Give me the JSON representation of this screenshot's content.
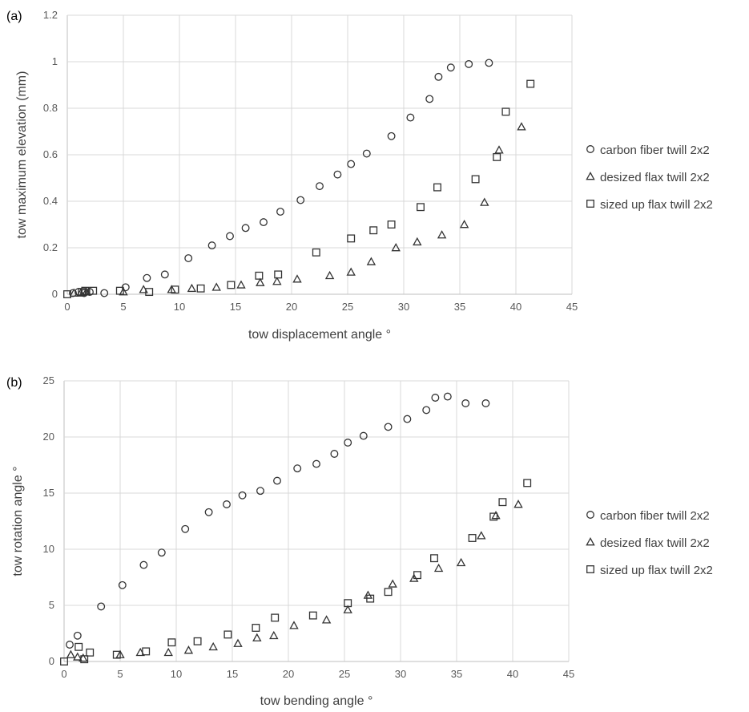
{
  "chart_data": [
    {
      "panel_label": "(a)",
      "type": "scatter",
      "xlabel": "tow displacement angle °",
      "ylabel": "tow maximum elevation (mm)",
      "xlim": [
        0,
        45
      ],
      "ylim": [
        0,
        1.2
      ],
      "x_ticks": [
        "0",
        "5",
        "10",
        "15",
        "20",
        "25",
        "30",
        "35",
        "40",
        "45"
      ],
      "y_ticks": [
        "0",
        "0.2",
        "0.4",
        "0.6",
        "0.8",
        "1",
        "1.2"
      ],
      "grid": true,
      "legend_position": "right",
      "series": [
        {
          "name": "carbon fiber twill 2x2",
          "marker": "circle",
          "points": [
            [
              0.5,
              0.005
            ],
            [
              1.0,
              0.01
            ],
            [
              1.5,
              0.005
            ],
            [
              2.0,
              0.01
            ],
            [
              3.3,
              0.005
            ],
            [
              5.2,
              0.03
            ],
            [
              7.1,
              0.07
            ],
            [
              8.7,
              0.085
            ],
            [
              10.8,
              0.155
            ],
            [
              12.9,
              0.21
            ],
            [
              14.5,
              0.25
            ],
            [
              15.9,
              0.285
            ],
            [
              17.5,
              0.31
            ],
            [
              19.0,
              0.355
            ],
            [
              20.8,
              0.405
            ],
            [
              22.5,
              0.465
            ],
            [
              24.1,
              0.515
            ],
            [
              25.3,
              0.56
            ],
            [
              26.7,
              0.605
            ],
            [
              28.9,
              0.68
            ],
            [
              30.6,
              0.76
            ],
            [
              32.3,
              0.84
            ],
            [
              33.1,
              0.935
            ],
            [
              34.2,
              0.975
            ],
            [
              35.8,
              0.99
            ],
            [
              37.6,
              0.995
            ]
          ]
        },
        {
          "name": "desized flax twill 2x2",
          "marker": "triangle",
          "points": [
            [
              0.6,
              0.005
            ],
            [
              1.2,
              0.005
            ],
            [
              1.7,
              0.01
            ],
            [
              5.0,
              0.01
            ],
            [
              6.8,
              0.02
            ],
            [
              9.3,
              0.02
            ],
            [
              11.1,
              0.025
            ],
            [
              13.3,
              0.03
            ],
            [
              15.5,
              0.04
            ],
            [
              17.2,
              0.05
            ],
            [
              18.7,
              0.055
            ],
            [
              20.5,
              0.065
            ],
            [
              23.4,
              0.08
            ],
            [
              25.3,
              0.095
            ],
            [
              27.1,
              0.14
            ],
            [
              29.3,
              0.2
            ],
            [
              31.2,
              0.225
            ],
            [
              33.4,
              0.255
            ],
            [
              35.4,
              0.3
            ],
            [
              37.2,
              0.395
            ],
            [
              38.5,
              0.62
            ],
            [
              40.5,
              0.72
            ]
          ]
        },
        {
          "name": "sized up flax twill 2x2",
          "marker": "square",
          "points": [
            [
              0.0,
              0.0
            ],
            [
              1.3,
              0.01
            ],
            [
              1.6,
              0.015
            ],
            [
              2.3,
              0.015
            ],
            [
              4.7,
              0.015
            ],
            [
              7.3,
              0.01
            ],
            [
              9.6,
              0.02
            ],
            [
              11.9,
              0.025
            ],
            [
              14.6,
              0.04
            ],
            [
              17.1,
              0.08
            ],
            [
              18.8,
              0.085
            ],
            [
              22.2,
              0.18
            ],
            [
              25.3,
              0.24
            ],
            [
              27.3,
              0.275
            ],
            [
              28.9,
              0.3
            ],
            [
              31.5,
              0.375
            ],
            [
              33.0,
              0.46
            ],
            [
              36.4,
              0.495
            ],
            [
              38.3,
              0.59
            ],
            [
              39.1,
              0.785
            ],
            [
              41.3,
              0.905
            ]
          ]
        }
      ]
    },
    {
      "panel_label": "(b)",
      "type": "scatter",
      "xlabel": "tow bending angle °",
      "ylabel": "tow rotation angle °",
      "xlim": [
        0,
        45
      ],
      "ylim": [
        0,
        25
      ],
      "x_ticks": [
        "0",
        "5",
        "10",
        "15",
        "20",
        "25",
        "30",
        "35",
        "40",
        "45"
      ],
      "y_ticks": [
        "0",
        "5",
        "10",
        "15",
        "20",
        "25"
      ],
      "grid": true,
      "legend_position": "right",
      "series": [
        {
          "name": "carbon fiber twill 2x2",
          "marker": "circle",
          "points": [
            [
              0.5,
              1.5
            ],
            [
              1.2,
              2.3
            ],
            [
              3.3,
              4.9
            ],
            [
              5.2,
              6.8
            ],
            [
              7.1,
              8.6
            ],
            [
              8.7,
              9.7
            ],
            [
              10.8,
              11.8
            ],
            [
              12.9,
              13.3
            ],
            [
              14.5,
              14.0
            ],
            [
              15.9,
              14.8
            ],
            [
              17.5,
              15.2
            ],
            [
              19.0,
              16.1
            ],
            [
              20.8,
              17.2
            ],
            [
              22.5,
              17.6
            ],
            [
              24.1,
              18.5
            ],
            [
              25.3,
              19.5
            ],
            [
              26.7,
              20.1
            ],
            [
              28.9,
              20.9
            ],
            [
              30.6,
              21.6
            ],
            [
              32.3,
              22.4
            ],
            [
              33.1,
              23.5
            ],
            [
              34.2,
              23.6
            ],
            [
              35.8,
              23.0
            ],
            [
              37.6,
              23.0
            ]
          ]
        },
        {
          "name": "desized flax twill 2x2",
          "marker": "triangle",
          "points": [
            [
              0.6,
              0.6
            ],
            [
              1.2,
              0.4
            ],
            [
              1.7,
              0.3
            ],
            [
              5.0,
              0.6
            ],
            [
              6.8,
              0.8
            ],
            [
              9.3,
              0.8
            ],
            [
              11.1,
              1.0
            ],
            [
              13.3,
              1.3
            ],
            [
              15.5,
              1.6
            ],
            [
              17.2,
              2.1
            ],
            [
              18.7,
              2.3
            ],
            [
              20.5,
              3.2
            ],
            [
              23.4,
              3.7
            ],
            [
              25.3,
              4.6
            ],
            [
              27.1,
              5.9
            ],
            [
              29.3,
              6.9
            ],
            [
              31.2,
              7.4
            ],
            [
              33.4,
              8.3
            ],
            [
              35.4,
              8.8
            ],
            [
              37.2,
              11.2
            ],
            [
              38.5,
              13.0
            ],
            [
              40.5,
              14.0
            ]
          ]
        },
        {
          "name": "sized up flax twill 2x2",
          "marker": "square",
          "points": [
            [
              0.0,
              0.0
            ],
            [
              1.3,
              1.3
            ],
            [
              1.8,
              0.2
            ],
            [
              2.3,
              0.8
            ],
            [
              4.7,
              0.6
            ],
            [
              7.3,
              0.9
            ],
            [
              9.6,
              1.7
            ],
            [
              11.9,
              1.8
            ],
            [
              14.6,
              2.4
            ],
            [
              17.1,
              3.0
            ],
            [
              18.8,
              3.9
            ],
            [
              22.2,
              4.1
            ],
            [
              25.3,
              5.2
            ],
            [
              27.3,
              5.6
            ],
            [
              28.9,
              6.2
            ],
            [
              31.5,
              7.7
            ],
            [
              33.0,
              9.2
            ],
            [
              36.4,
              11.0
            ],
            [
              38.3,
              12.9
            ],
            [
              39.1,
              14.2
            ],
            [
              41.3,
              15.9
            ]
          ]
        }
      ]
    }
  ]
}
